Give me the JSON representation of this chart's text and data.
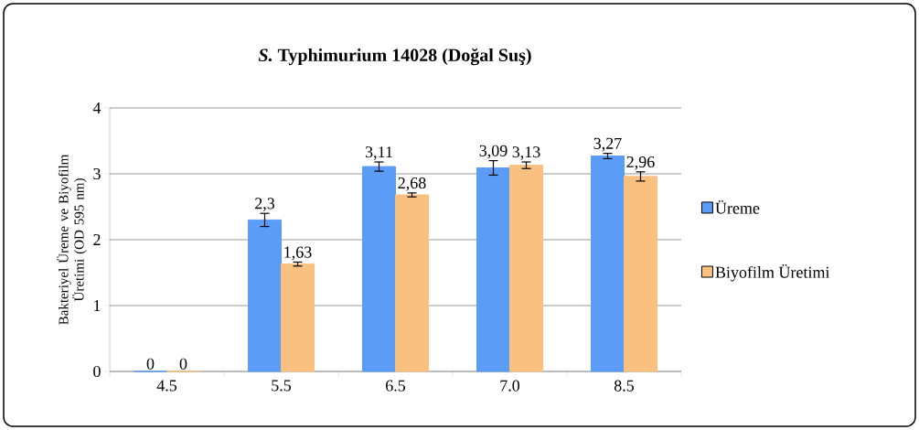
{
  "chart_data": {
    "type": "bar",
    "title": "*S.* Typhimurium 14028 (Doğal Suş)",
    "ylabel": "Bakteriyel Üreme ve Biyofilm Üretimi (OD 595 nm)",
    "categories": [
      "4.5",
      "5.5",
      "6.5",
      "7.0",
      "8.5"
    ],
    "series": [
      {
        "name": "Üreme",
        "color": "#5b9cf6",
        "values": [
          0,
          2.3,
          3.11,
          3.09,
          3.27
        ],
        "errors": [
          null,
          0.1,
          0.07,
          0.11,
          0.04
        ],
        "value_labels": [
          "0",
          "2,3",
          "3,11",
          "3,09",
          "3,27"
        ]
      },
      {
        "name": "Biyofilm Üretimi",
        "color": "#f9c080",
        "values": [
          0,
          1.63,
          2.68,
          3.13,
          2.96
        ],
        "errors": [
          null,
          0.03,
          0.03,
          0.05,
          0.07
        ],
        "value_labels": [
          "0",
          "1,63",
          "2,68",
          "3,13",
          "2,96"
        ]
      }
    ],
    "ylim": [
      0,
      4
    ],
    "yticks": [
      0,
      1,
      2,
      3,
      4
    ],
    "grid": "y",
    "legend": "right"
  }
}
